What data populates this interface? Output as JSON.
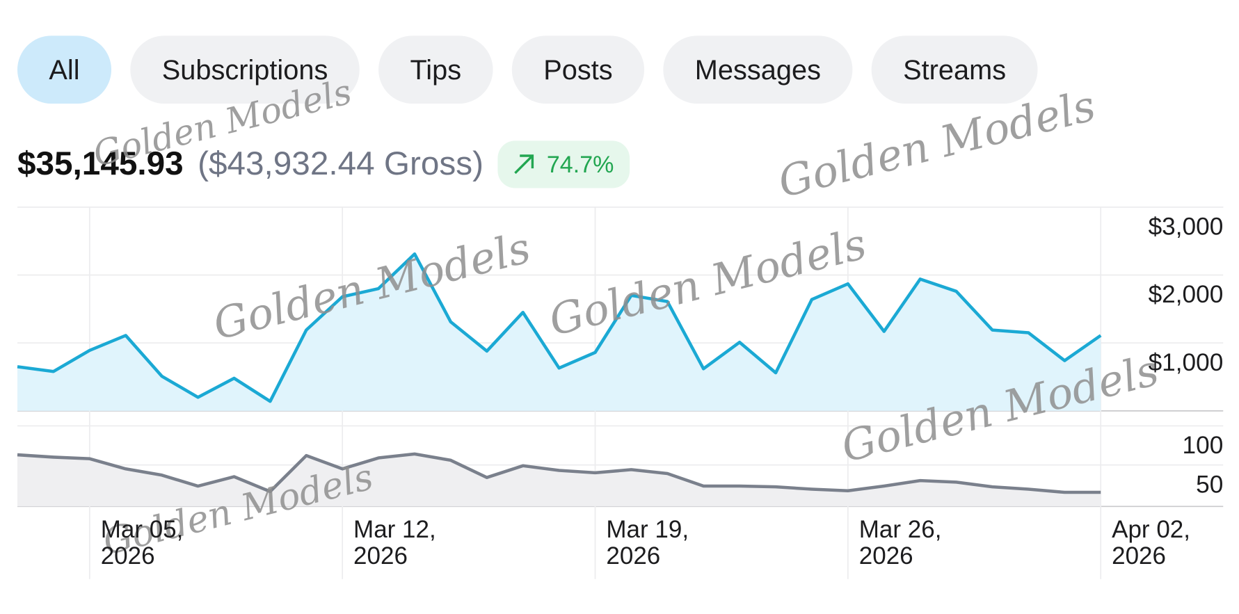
{
  "filters": [
    "All",
    "Subscriptions",
    "Tips",
    "Posts",
    "Messages",
    "Streams"
  ],
  "active_filter": 0,
  "summary": {
    "net": "$35,145.93",
    "gross": "($43,932.44 Gross)",
    "change": "74.7%"
  },
  "watermark": "Golden Models",
  "chart_data": [
    {
      "type": "area",
      "x": [
        "2026-03-03",
        "2026-03-04",
        "2026-03-05",
        "2026-03-06",
        "2026-03-07",
        "2026-03-08",
        "2026-03-09",
        "2026-03-10",
        "2026-03-11",
        "2026-03-12",
        "2026-03-13",
        "2026-03-14",
        "2026-03-15",
        "2026-03-16",
        "2026-03-17",
        "2026-03-18",
        "2026-03-19",
        "2026-03-20",
        "2026-03-21",
        "2026-03-22",
        "2026-03-23",
        "2026-03-24",
        "2026-03-25",
        "2026-03-26",
        "2026-03-27",
        "2026-03-28",
        "2026-03-29",
        "2026-03-30",
        "2026-03-31",
        "2026-04-01",
        "2026-04-02"
      ],
      "series": [
        {
          "color": "#1ba9d4",
          "fill": "#e0f4fc",
          "values": [
            650,
            580,
            890,
            1110,
            510,
            200,
            480,
            140,
            1190,
            1680,
            1800,
            2310,
            1310,
            880,
            1450,
            630,
            860,
            1700,
            1610,
            620,
            1010,
            560,
            1640,
            1870,
            1170,
            1940,
            1760,
            1190,
            1150,
            740,
            1110
          ]
        }
      ],
      "xlim": [
        "2026-03-03",
        "2026-04-02"
      ],
      "ylim": [
        0,
        3000
      ],
      "yticks": [
        {
          "value": 1000,
          "label": "$1,000"
        },
        {
          "value": 2000,
          "label": "$2,000"
        },
        {
          "value": 3000,
          "label": "$3,000"
        }
      ],
      "grid": true
    },
    {
      "type": "area",
      "x": [
        "2026-03-03",
        "2026-03-04",
        "2026-03-05",
        "2026-03-06",
        "2026-03-07",
        "2026-03-08",
        "2026-03-09",
        "2026-03-10",
        "2026-03-11",
        "2026-03-12",
        "2026-03-13",
        "2026-03-14",
        "2026-03-15",
        "2026-03-16",
        "2026-03-17",
        "2026-03-18",
        "2026-03-19",
        "2026-03-20",
        "2026-03-21",
        "2026-03-22",
        "2026-03-23",
        "2026-03-24",
        "2026-03-25",
        "2026-03-26",
        "2026-03-27",
        "2026-03-28",
        "2026-03-29",
        "2026-03-30",
        "2026-03-31",
        "2026-04-01",
        "2026-04-02"
      ],
      "series": [
        {
          "color": "#7a808c",
          "fill": "#efeff1",
          "values": [
            63,
            60,
            58,
            45,
            37,
            23,
            35,
            16,
            62,
            45,
            59,
            64,
            56,
            34,
            49,
            43,
            40,
            44,
            39,
            23,
            23,
            22,
            19,
            17,
            23,
            30,
            28,
            22,
            19,
            15,
            15
          ]
        }
      ],
      "xlim": [
        "2026-03-03",
        "2026-04-02"
      ],
      "xticks": [
        {
          "value": "2026-03-05",
          "label": "Mar 05, 2026"
        },
        {
          "value": "2026-03-12",
          "label": "Mar 12, 2026"
        },
        {
          "value": "2026-03-19",
          "label": "Mar 19, 2026"
        },
        {
          "value": "2026-03-26",
          "label": "Mar 26, 2026"
        },
        {
          "value": "2026-04-02",
          "label": "Apr 02, 2026"
        }
      ],
      "ylim": [
        0,
        100
      ],
      "yticks": [
        50,
        100
      ],
      "grid": true
    }
  ]
}
